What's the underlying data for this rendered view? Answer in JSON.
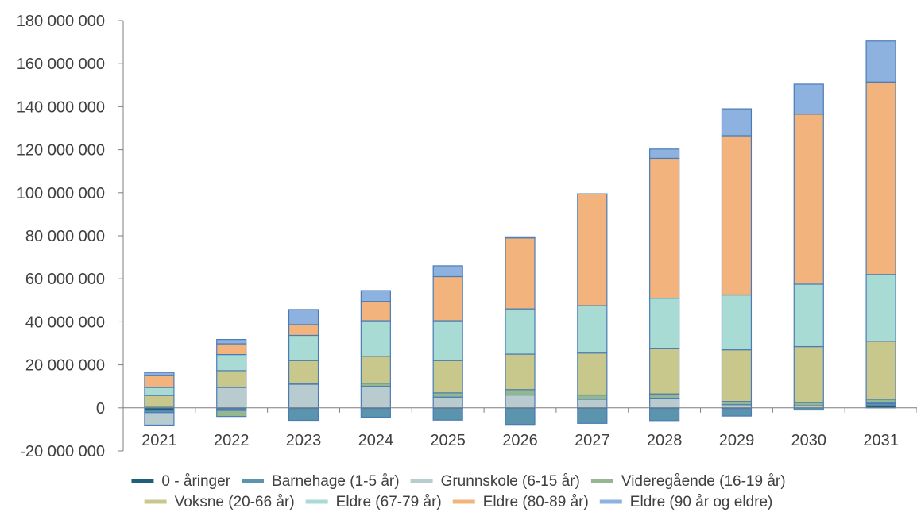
{
  "chart_data": {
    "type": "bar",
    "stacked": true,
    "categories": [
      "2021",
      "2022",
      "2023",
      "2024",
      "2025",
      "2026",
      "2027",
      "2028",
      "2029",
      "2030",
      "2031"
    ],
    "ylim": [
      -20000000,
      180000000
    ],
    "yticks": [
      -20000000,
      0,
      20000000,
      40000000,
      60000000,
      80000000,
      100000000,
      120000000,
      140000000,
      160000000,
      180000000
    ],
    "ytick_labels": [
      "-20 000 000",
      "0",
      "20 000 000",
      "40 000 000",
      "60 000 000",
      "80 000 000",
      "100 000 000",
      "120 000 000",
      "140 000 000",
      "160 000 000",
      "180 000 000"
    ],
    "grid": false,
    "legend_position": "bottom",
    "series": [
      {
        "name": "0 - åringer",
        "color": "#1f5f7e",
        "values": [
          -1200000,
          -500000,
          -300000,
          -300000,
          -200000,
          -200000,
          -200000,
          -300000,
          -300000,
          0,
          1000000
        ]
      },
      {
        "name": "Barnehage (1-5 år)",
        "color": "#5b94ad",
        "values": [
          -1000000,
          -700000,
          -5500000,
          -4000000,
          -5500000,
          -7500000,
          -7000000,
          -5600000,
          -3500000,
          -1000000,
          1000000
        ]
      },
      {
        "name": "Grunnskole (6-15 år)",
        "color": "#b8cbce",
        "values": [
          -5800000,
          9500000,
          11000000,
          10000000,
          5000000,
          6000000,
          4000000,
          4500000,
          1500000,
          1000000,
          500000
        ]
      },
      {
        "name": "Videregående (16-19 år)",
        "color": "#93b890",
        "values": [
          800000,
          -2800000,
          500000,
          1500000,
          2000000,
          2500000,
          2000000,
          2000000,
          1500000,
          1500000,
          1500000
        ]
      },
      {
        "name": "Voksne (20-66 år)",
        "color": "#c9c88c",
        "values": [
          5000000,
          7800000,
          10500000,
          12500000,
          15000000,
          16500000,
          19500000,
          21000000,
          24000000,
          26000000,
          27000000
        ]
      },
      {
        "name": "Eldre (67-79 år)",
        "color": "#a7dbd4",
        "values": [
          3700000,
          7500000,
          11700000,
          16500000,
          18500000,
          21000000,
          22000000,
          23500000,
          25500000,
          29000000,
          31000000
        ]
      },
      {
        "name": "Eldre (80-89 år)",
        "color": "#f2b47c",
        "values": [
          5500000,
          5000000,
          5000000,
          9000000,
          20500000,
          33000000,
          52000000,
          65000000,
          74000000,
          79000000,
          89500000
        ]
      },
      {
        "name": "Eldre (90 år og eldre)",
        "color": "#8eb2e0",
        "values": [
          1500000,
          2000000,
          7000000,
          5000000,
          5000000,
          500000,
          0,
          4300000,
          12500000,
          14000000,
          19000000
        ]
      }
    ]
  },
  "colors": {
    "outline": "#4b7bb5",
    "axis": "#7f7f7f",
    "text": "#404040"
  }
}
